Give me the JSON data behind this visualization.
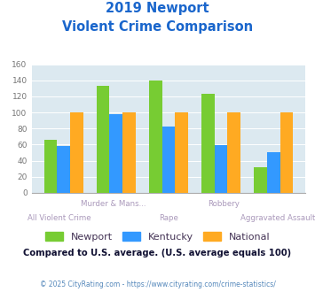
{
  "title_line1": "2019 Newport",
  "title_line2": "Violent Crime Comparison",
  "categories": [
    "All Violent Crime",
    "Murder & Mans...",
    "Rape",
    "Robbery",
    "Aggravated Assault"
  ],
  "newport": [
    66,
    133,
    140,
    123,
    32
  ],
  "kentucky": [
    58,
    98,
    82,
    59,
    51
  ],
  "national": [
    100,
    100,
    100,
    100,
    100
  ],
  "newport_color": "#77cc33",
  "kentucky_color": "#3399ff",
  "national_color": "#ffaa22",
  "bg_color": "#dce9f0",
  "title_color": "#1a66cc",
  "xlabel_color": "#aa99bb",
  "ylabel_color": "#777777",
  "footnote_color": "#111133",
  "copyright_color": "#5588bb",
  "ylim": [
    0,
    160
  ],
  "yticks": [
    0,
    20,
    40,
    60,
    80,
    100,
    120,
    140,
    160
  ],
  "footnote": "Compared to U.S. average. (U.S. average equals 100)",
  "copyright": "© 2025 CityRating.com - https://www.cityrating.com/crime-statistics/",
  "bar_width": 0.25,
  "upper_labels": {
    "1": "Murder & Mans...",
    "3": "Robbery"
  },
  "lower_labels": {
    "0": "All Violent Crime",
    "2": "Rape",
    "4": "Aggravated Assault"
  }
}
